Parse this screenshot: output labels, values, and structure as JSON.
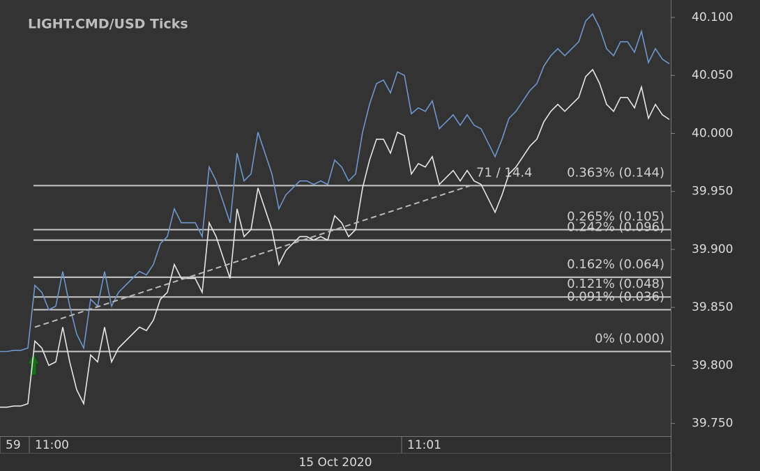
{
  "chart_data": {
    "type": "line",
    "title": "LIGHT.CMD/USD  Ticks",
    "x": [
      0,
      1,
      2,
      3,
      4,
      5,
      6,
      7,
      8,
      9,
      10,
      11,
      12,
      13,
      14,
      15,
      16,
      17,
      18,
      19,
      20,
      21,
      22,
      23,
      24,
      25,
      26,
      27,
      28,
      29,
      30,
      31,
      32,
      33,
      34,
      35,
      36,
      37,
      38,
      39,
      40,
      41,
      42,
      43,
      44,
      45,
      46,
      47,
      48,
      49,
      50,
      51,
      52,
      53,
      54,
      55,
      56,
      57,
      58,
      59,
      60,
      61,
      62,
      63,
      64,
      65,
      66,
      67,
      68,
      69,
      70,
      71,
      72,
      73,
      74,
      75,
      76,
      77,
      78,
      79,
      80,
      81,
      82,
      83,
      84,
      85,
      86,
      87,
      88,
      89,
      90,
      91,
      92,
      93,
      94,
      95,
      96
    ],
    "series": [
      {
        "color": "#7096cb",
        "values": [
          39.812,
          39.812,
          39.813,
          39.813,
          39.815,
          39.869,
          39.863,
          39.848,
          39.851,
          39.881,
          39.851,
          39.827,
          39.815,
          39.857,
          39.851,
          39.881,
          39.851,
          39.863,
          39.869,
          39.875,
          39.881,
          39.878,
          39.887,
          39.905,
          39.911,
          39.935,
          39.923,
          39.923,
          39.923,
          39.911,
          39.971,
          39.959,
          39.941,
          39.923,
          39.983,
          39.959,
          39.965,
          40.001,
          39.983,
          39.965,
          39.935,
          39.947,
          39.953,
          39.959,
          39.959,
          39.956,
          39.959,
          39.956,
          39.977,
          39.971,
          39.959,
          39.965,
          40.001,
          40.025,
          40.043,
          40.046,
          40.035,
          40.053,
          40.05,
          40.017,
          40.022,
          40.019,
          40.028,
          40.004,
          40.01,
          40.016,
          40.007,
          40.016,
          40.007,
          40.004,
          39.992,
          39.98,
          39.995,
          40.013,
          40.019,
          40.028,
          40.037,
          40.043,
          40.058,
          40.067,
          40.073,
          40.067,
          40.073,
          40.079,
          40.097,
          40.103,
          40.091,
          40.073,
          40.067,
          40.079,
          40.079,
          40.07,
          40.088,
          40.061,
          40.073,
          40.064,
          40.06
        ]
      },
      {
        "color": "#e6e6e6",
        "values": [
          39.764,
          39.764,
          39.765,
          39.765,
          39.767,
          39.821,
          39.815,
          39.8,
          39.803,
          39.833,
          39.803,
          39.779,
          39.767,
          39.809,
          39.803,
          39.833,
          39.803,
          39.815,
          39.821,
          39.827,
          39.833,
          39.83,
          39.839,
          39.857,
          39.863,
          39.887,
          39.875,
          39.875,
          39.875,
          39.863,
          39.923,
          39.911,
          39.893,
          39.875,
          39.935,
          39.911,
          39.917,
          39.953,
          39.935,
          39.917,
          39.887,
          39.899,
          39.905,
          39.911,
          39.911,
          39.908,
          39.911,
          39.908,
          39.929,
          39.923,
          39.911,
          39.917,
          39.953,
          39.977,
          39.995,
          39.995,
          39.983,
          40.001,
          39.998,
          39.965,
          39.974,
          39.971,
          39.98,
          39.956,
          39.962,
          39.968,
          39.959,
          39.968,
          39.959,
          39.956,
          39.944,
          39.932,
          39.947,
          39.965,
          39.971,
          39.98,
          39.989,
          39.995,
          40.01,
          40.019,
          40.025,
          40.019,
          40.025,
          40.031,
          40.049,
          40.055,
          40.043,
          40.025,
          40.019,
          40.031,
          40.031,
          40.022,
          40.04,
          40.013,
          40.025,
          40.016,
          40.012
        ]
      }
    ],
    "xlim": [
      0,
      96.2
    ],
    "xticks": [
      {
        "value": 0,
        "label": "59"
      },
      {
        "value": 4.2,
        "label": "11:00"
      },
      {
        "value": 57.6,
        "label": "11:01"
      }
    ],
    "x_date_label": "15 Oct 2020",
    "ylim": [
      39.739,
      40.115
    ],
    "yticks": [
      {
        "value": 40.1,
        "label": "40.100"
      },
      {
        "value": 40.05,
        "label": "40.050"
      },
      {
        "value": 40.0,
        "label": "40.000"
      },
      {
        "value": 39.95,
        "label": "39.950"
      },
      {
        "value": 39.9,
        "label": "39.900"
      },
      {
        "value": 39.85,
        "label": "39.850"
      },
      {
        "value": 39.8,
        "label": "39.800"
      },
      {
        "value": 39.75,
        "label": "39.750"
      }
    ],
    "levels": [
      {
        "value": 39.955,
        "label": "0.363% (0.144)"
      },
      {
        "value": 39.917,
        "label": "0.265% (0.105)"
      },
      {
        "value": 39.908,
        "label": "0.242% (0.096)"
      },
      {
        "value": 39.876,
        "label": "0.162% (0.064)"
      },
      {
        "value": 39.859,
        "label": "0.121% (0.048)"
      },
      {
        "value": 39.848,
        "label": "0.091% (0.036)"
      },
      {
        "value": 39.812,
        "label": "0% (0.000)"
      }
    ],
    "level_annotation": "71 / 14.4",
    "trend_line": {
      "x": [
        5,
        68
      ],
      "values": [
        39.833,
        39.956
      ]
    }
  }
}
